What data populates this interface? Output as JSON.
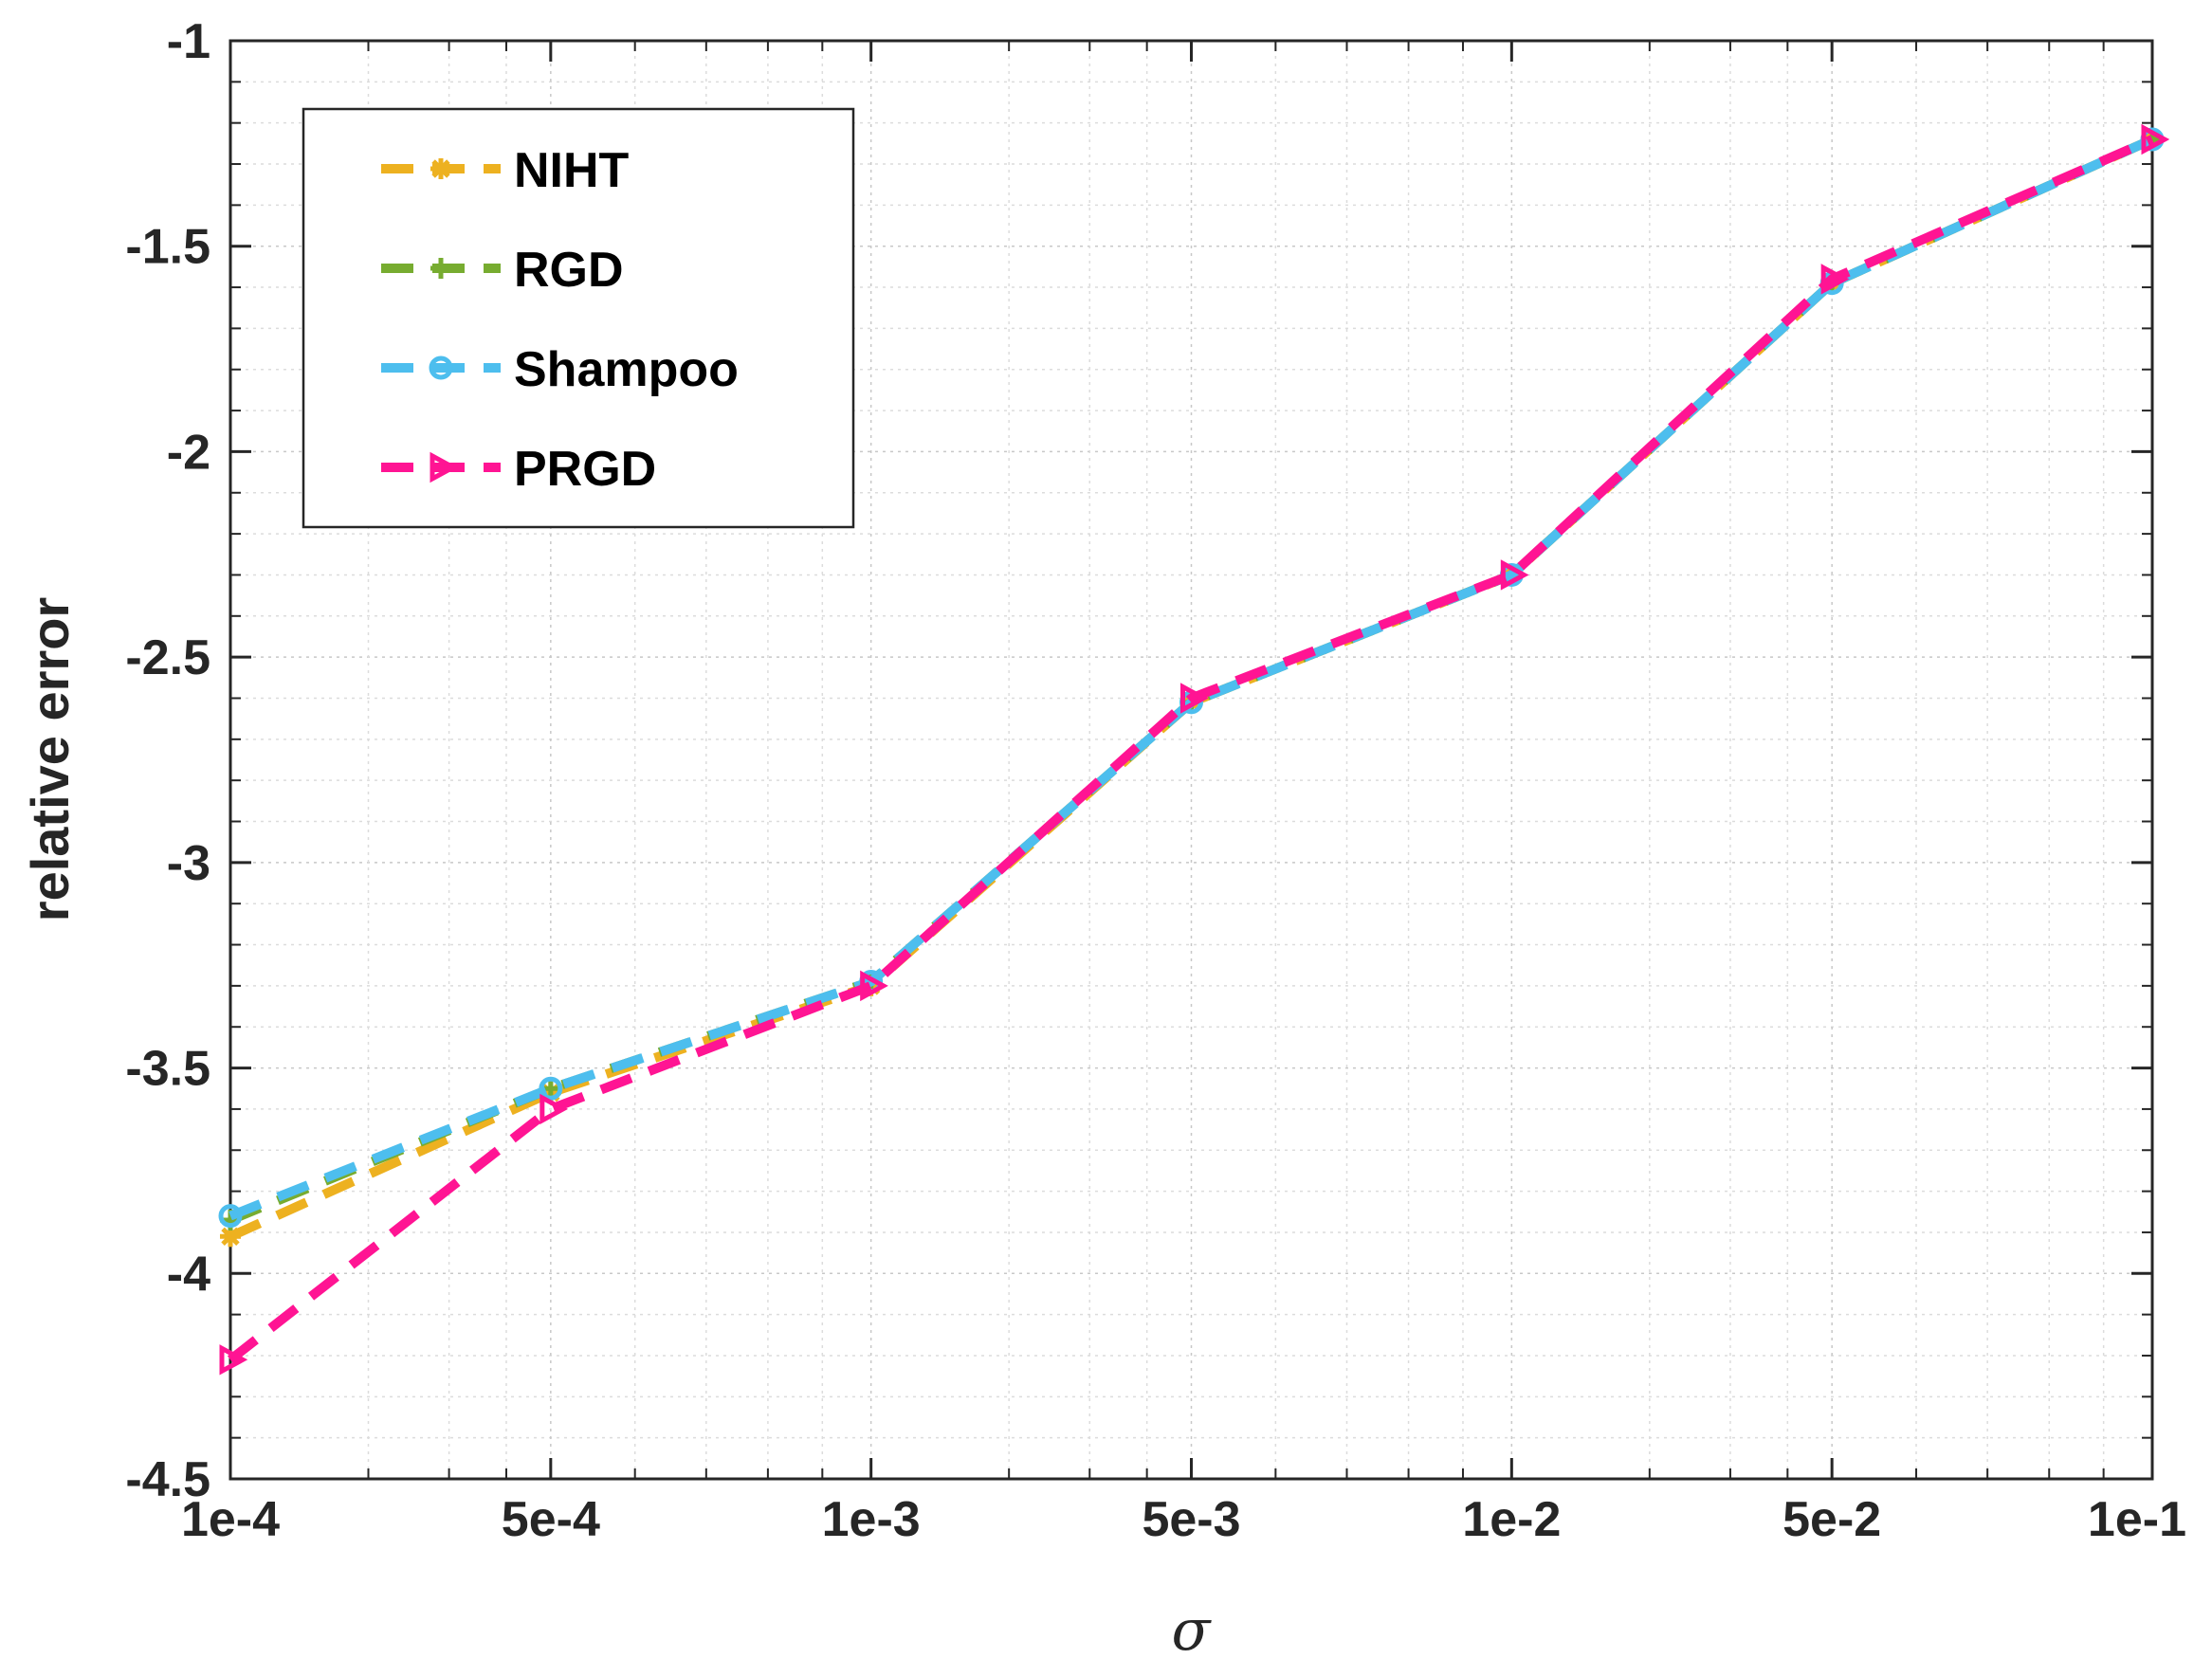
{
  "chart_data": {
    "type": "line",
    "title": "",
    "xlabel": "σ",
    "ylabel": "relative error",
    "x_scale": "log",
    "x": [
      0.0001,
      0.0005,
      0.001,
      0.005,
      0.01,
      0.05,
      0.1
    ],
    "x_ticks": [
      {
        "value": 0.0001,
        "label": "1e-4"
      },
      {
        "value": 0.0005,
        "label": "5e-4"
      },
      {
        "value": 0.001,
        "label": "1e-3"
      },
      {
        "value": 0.005,
        "label": "5e-3"
      },
      {
        "value": 0.01,
        "label": "1e-2"
      },
      {
        "value": 0.05,
        "label": "5e-2"
      },
      {
        "value": 0.1,
        "label": "1e-1"
      }
    ],
    "x_tick_positions": "evenly spaced, one per data point",
    "ylim": [
      -4.5,
      -1
    ],
    "y_ticks": [
      "-1",
      "-1.5",
      "-2",
      "-2.5",
      "-3",
      "-3.5",
      "-4",
      "-4.5"
    ],
    "grid": true,
    "legend_position": "top-left",
    "series": [
      {
        "name": "NIHT",
        "color": "#EDB120",
        "marker": "asterisk",
        "values": [
          -3.91,
          -3.56,
          -3.3,
          -2.61,
          -2.3,
          -1.59,
          -1.24
        ]
      },
      {
        "name": "RGD",
        "color": "#77AC30",
        "marker": "plus",
        "values": [
          -3.87,
          -3.55,
          -3.29,
          -2.61,
          -2.3,
          -1.59,
          -1.24
        ]
      },
      {
        "name": "Shampoo",
        "color": "#4DBEEE",
        "marker": "circle",
        "values": [
          -3.86,
          -3.55,
          -3.29,
          -2.61,
          -2.3,
          -1.59,
          -1.24
        ]
      },
      {
        "name": "PRGD",
        "color": "#FF1493",
        "marker": "triangle-right",
        "values": [
          -4.21,
          -3.6,
          -3.3,
          -2.6,
          -2.3,
          -1.58,
          -1.24
        ]
      }
    ]
  }
}
